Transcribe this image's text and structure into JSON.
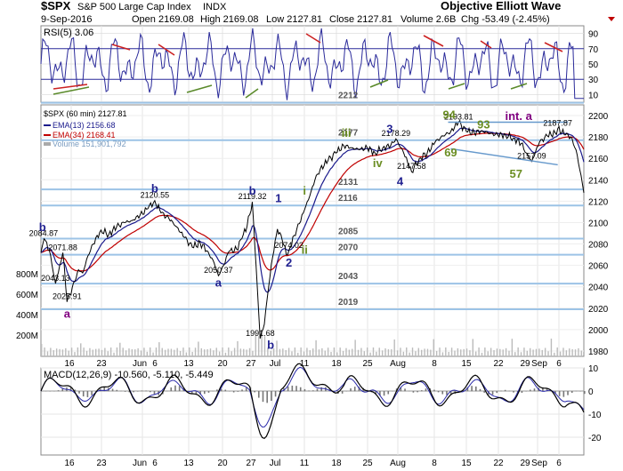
{
  "header": {
    "symbol": "$SPX",
    "name": "S&P 500 Large Cap Index",
    "exchange": "INDX",
    "date": "9-Sep-2016",
    "open": "Open 2169.08",
    "high": "High 2169.08",
    "low": "Low 2127.81",
    "close": "Close 2127.81",
    "volume": "Volume 2.6B",
    "change": "Chg -53.49 (-2.45%)",
    "source": "Objective Elliott Wave"
  },
  "rsi": {
    "label": "RSI(5) 3.06",
    "ticks": [
      "90",
      "70",
      "50",
      "30",
      "10"
    ],
    "levels": [
      90,
      70,
      50,
      30,
      10
    ]
  },
  "legend": {
    "title": "$SPX (60 min) 2127.81",
    "ema13": "EMA(13) 2156.68",
    "ema34": "EMA(34) 2168.41",
    "volume": "Volume 151,901,792"
  },
  "macd": {
    "label": "MACD(12,26,9) -10.560, -5.110, -5.449",
    "ticks": [
      "10",
      "0",
      "-10",
      "-20"
    ]
  },
  "colors": {
    "price": "#000000",
    "ema13": "#1a1a8c",
    "ema34": "#c00000",
    "levels": "#9cc3e6",
    "wave_blue": "#1f1f8f",
    "wave_green": "#6b8e23",
    "wave_purple": "#800080",
    "trend_blue": "#6699cc"
  },
  "chart_data": {
    "type": "line",
    "title": "$SPX (60 min)",
    "price_axis": [
      "2200",
      "2180",
      "2160",
      "2140",
      "2120",
      "2100",
      "2080",
      "2060",
      "2040",
      "2020",
      "2000",
      "1980"
    ],
    "volume_axis": [
      "800M",
      "600M",
      "400M",
      "200M"
    ],
    "ylim": [
      1975,
      2210
    ],
    "x_labels": [
      "16",
      "23",
      "Jun",
      "6",
      "13",
      "20",
      "27",
      "Jul",
      "11",
      "18",
      "25",
      "Aug",
      "8",
      "15",
      "22",
      "29",
      "Sep",
      "6"
    ],
    "support_levels": [
      "2212",
      "2177",
      "2131",
      "2116",
      "2085",
      "2070",
      "2043",
      "2019"
    ],
    "support_values": [
      2212,
      2177,
      2131,
      2116,
      2085,
      2070,
      2043,
      2019
    ],
    "price_labels": [
      {
        "t": 0.5,
        "v": 2084.87,
        "text": "2084.87"
      },
      {
        "t": 4.2,
        "v": 2071.88,
        "text": "2071.88"
      },
      {
        "t": 2.8,
        "v": 2043.13,
        "text": "2043.13"
      },
      {
        "t": 5.0,
        "v": 2025.91,
        "text": "2025.91"
      },
      {
        "t": 21.8,
        "v": 2120.55,
        "text": "2120.55"
      },
      {
        "t": 34.0,
        "v": 2050.37,
        "text": "2050.37"
      },
      {
        "t": 40.5,
        "v": 2119.32,
        "text": "2119.32"
      },
      {
        "t": 42.0,
        "v": 1991.68,
        "text": "1991.68"
      },
      {
        "t": 47.5,
        "v": 2074.02,
        "text": "2074.02"
      },
      {
        "t": 68.0,
        "v": 2178.29,
        "text": "2178.29"
      },
      {
        "t": 71.0,
        "v": 2147.58,
        "text": "2147.58"
      },
      {
        "t": 80.0,
        "v": 2193.81,
        "text": "2193.81"
      },
      {
        "t": 99.0,
        "v": 2187.87,
        "text": "2187.87"
      },
      {
        "t": 94.0,
        "v": 2157.09,
        "text": "2157.09"
      }
    ],
    "wave_labels": [
      {
        "text": "b",
        "color": "wave_blue",
        "t": 0.3,
        "v": 2092
      },
      {
        "text": "a",
        "color": "wave_purple",
        "t": 5.0,
        "v": 2011
      },
      {
        "text": "b",
        "color": "wave_blue",
        "t": 21.8,
        "v": 2128
      },
      {
        "text": "a",
        "color": "wave_blue",
        "t": 34.0,
        "v": 2040
      },
      {
        "text": "b",
        "color": "wave_blue",
        "t": 40.5,
        "v": 2126
      },
      {
        "text": "b",
        "color": "wave_blue",
        "t": 44.0,
        "v": 1982
      },
      {
        "text": "1",
        "color": "wave_blue",
        "t": 45.5,
        "v": 2119
      },
      {
        "text": "2",
        "color": "wave_blue",
        "t": 47.5,
        "v": 2059
      },
      {
        "text": "i",
        "color": "wave_green",
        "t": 50.5,
        "v": 2126
      },
      {
        "text": "ii",
        "color": "wave_green",
        "t": 50.5,
        "v": 2071
      },
      {
        "text": "iii",
        "color": "wave_green",
        "t": 58.5,
        "v": 2180
      },
      {
        "text": "iv",
        "color": "wave_green",
        "t": 64.5,
        "v": 2152
      },
      {
        "text": "3",
        "color": "wave_blue",
        "t": 66.8,
        "v": 2184
      },
      {
        "text": "4",
        "color": "wave_blue",
        "t": 68.8,
        "v": 2135
      },
      {
        "text": "94",
        "color": "wave_green",
        "t": 78.2,
        "v": 2197
      },
      {
        "text": "93",
        "color": "wave_green",
        "t": 84.8,
        "v": 2188
      },
      {
        "text": "69",
        "color": "wave_green",
        "t": 78.5,
        "v": 2162
      },
      {
        "text": "57",
        "color": "wave_green",
        "t": 91.0,
        "v": 2142
      },
      {
        "text": "int. a",
        "color": "wave_purple",
        "t": 91.5,
        "v": 2196
      }
    ],
    "anchors": [
      [
        0,
        2072
      ],
      [
        0.6,
        2084.87
      ],
      [
        1.6,
        2074
      ],
      [
        2.8,
        2043.13
      ],
      [
        3.6,
        2060
      ],
      [
        4.2,
        2071.88
      ],
      [
        5.0,
        2025.91
      ],
      [
        6.5,
        2045
      ],
      [
        7.2,
        2056
      ],
      [
        8.0,
        2053
      ],
      [
        9.0,
        2069
      ],
      [
        10.0,
        2080
      ],
      [
        11.5,
        2093
      ],
      [
        13.0,
        2089
      ],
      [
        14.5,
        2096
      ],
      [
        16.0,
        2100
      ],
      [
        17.5,
        2102
      ],
      [
        19.0,
        2107
      ],
      [
        20.5,
        2113
      ],
      [
        21.8,
        2120.55
      ],
      [
        23.0,
        2109
      ],
      [
        24.5,
        2104
      ],
      [
        26.0,
        2096
      ],
      [
        27.5,
        2086
      ],
      [
        29.0,
        2077
      ],
      [
        30.5,
        2081
      ],
      [
        32.0,
        2073
      ],
      [
        33.2,
        2062
      ],
      [
        34.0,
        2050.37
      ],
      [
        35.0,
        2060
      ],
      [
        36.0,
        2073
      ],
      [
        37.5,
        2075
      ],
      [
        38.5,
        2085
      ],
      [
        39.5,
        2097
      ],
      [
        40.5,
        2119.32
      ],
      [
        41.2,
        2060
      ],
      [
        42.0,
        1991.68
      ],
      [
        42.8,
        2005
      ],
      [
        43.6,
        2039
      ],
      [
        44.4,
        2068
      ],
      [
        45.3,
        2094
      ],
      [
        46.2,
        2084
      ],
      [
        47.0,
        2070
      ],
      [
        47.5,
        2074.02
      ],
      [
        48.5,
        2088
      ],
      [
        49.5,
        2099
      ],
      [
        50.5,
        2112
      ],
      [
        51.5,
        2125
      ],
      [
        52.5,
        2140
      ],
      [
        53.5,
        2150
      ],
      [
        55.0,
        2158
      ],
      [
        56.5,
        2165
      ],
      [
        58.0,
        2172
      ],
      [
        59.5,
        2170
      ],
      [
        61.0,
        2168
      ],
      [
        62.5,
        2170
      ],
      [
        64.0,
        2165
      ],
      [
        65.5,
        2170
      ],
      [
        67.0,
        2172
      ],
      [
        68.0,
        2178.29
      ],
      [
        69.5,
        2165
      ],
      [
        71.0,
        2147.58
      ],
      [
        72.5,
        2160
      ],
      [
        74.0,
        2165
      ],
      [
        75.5,
        2175
      ],
      [
        77.0,
        2181
      ],
      [
        78.5,
        2185
      ],
      [
        80.0,
        2193.81
      ],
      [
        81.5,
        2185
      ],
      [
        83.0,
        2184
      ],
      [
        84.5,
        2186
      ],
      [
        86.0,
        2183
      ],
      [
        87.5,
        2182
      ],
      [
        89.0,
        2182
      ],
      [
        90.5,
        2179
      ],
      [
        92.0,
        2174
      ],
      [
        93.0,
        2165
      ],
      [
        94.0,
        2157.09
      ],
      [
        95.5,
        2175
      ],
      [
        97.0,
        2181
      ],
      [
        98.5,
        2184
      ],
      [
        99.0,
        2187.87
      ],
      [
        100.5,
        2182
      ],
      [
        101.5,
        2180
      ],
      [
        102.5,
        2168
      ],
      [
        103.2,
        2150
      ],
      [
        104.0,
        2127.81
      ]
    ]
  }
}
